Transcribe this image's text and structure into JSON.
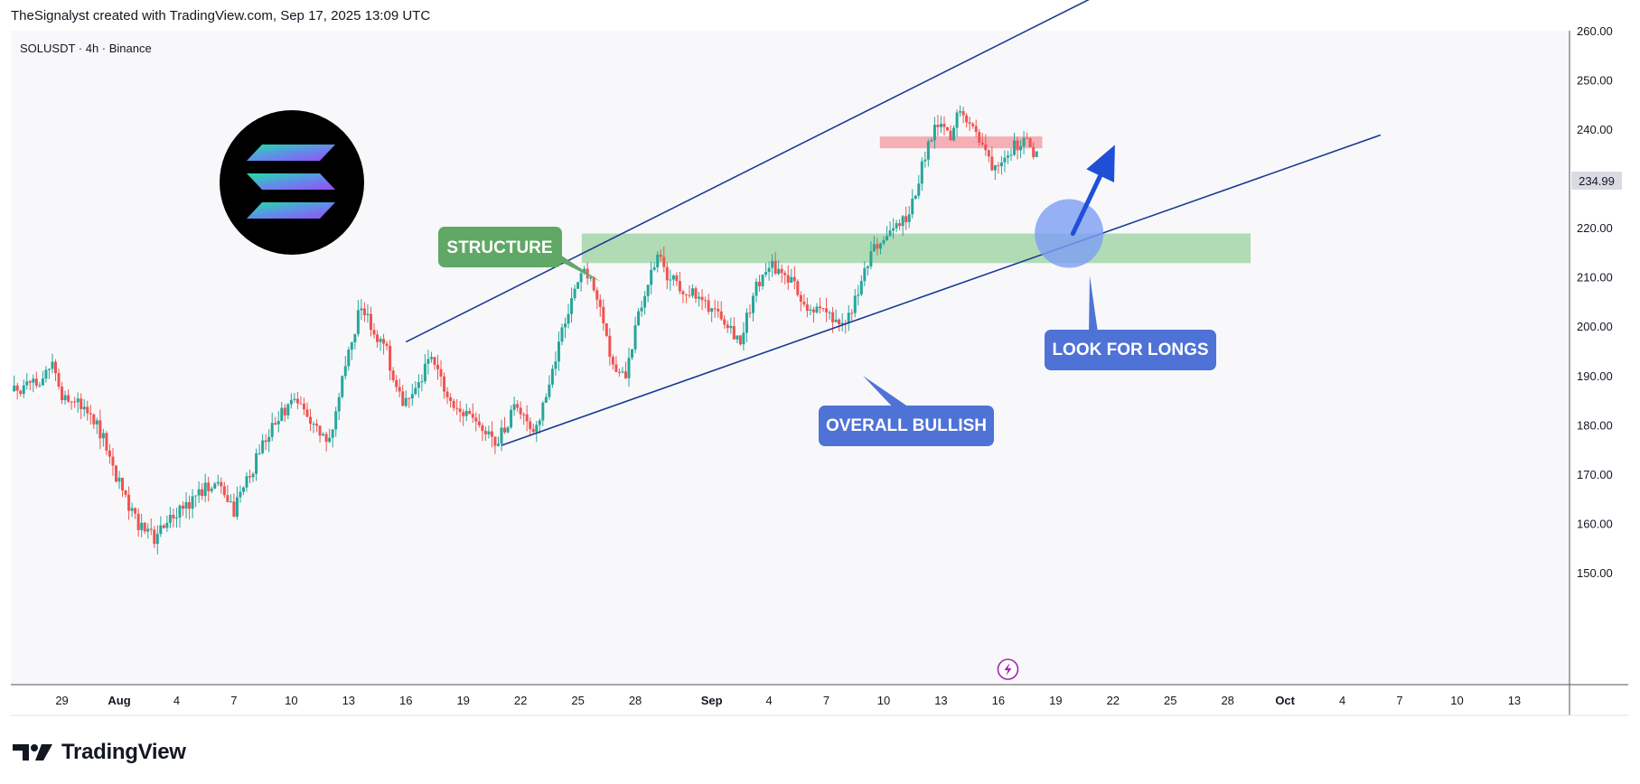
{
  "header": {
    "credit": "TheSignalyst created with TradingView.com, Sep 17, 2025 13:09 UTC"
  },
  "brand": {
    "name": "TradingView",
    "logo_icon": "tradingview-logo-icon"
  },
  "colors": {
    "up": "#26a69a",
    "down": "#ef5350",
    "trendline": "#1a3a94",
    "structure_zone": "#a5d6a7",
    "resistance_zone": "#f4a6ad",
    "structure_label": "#5fa865",
    "bullish_label": "#4f72d6",
    "arrow": "#1f4fd6",
    "circle": "#7d9ef5"
  },
  "chart_data": {
    "type": "candlestick",
    "title": "SOLUSDT · 4h · Binance",
    "symbol": "SOLUSDT",
    "interval": "4h",
    "exchange": "Binance",
    "ylim": [
      148,
      262
    ],
    "y_ticks": [
      "150.00",
      "160.00",
      "170.00",
      "180.00",
      "190.00",
      "200.00",
      "210.00",
      "220.00",
      "230.00",
      "240.00",
      "250.00",
      "260.00"
    ],
    "last_price": "234.99",
    "x_ticks": [
      {
        "label": "29",
        "day": -3
      },
      {
        "label": "Aug",
        "day": 0,
        "bold": true
      },
      {
        "label": "4",
        "day": 3
      },
      {
        "label": "7",
        "day": 6
      },
      {
        "label": "10",
        "day": 9
      },
      {
        "label": "13",
        "day": 12
      },
      {
        "label": "16",
        "day": 15
      },
      {
        "label": "19",
        "day": 18
      },
      {
        "label": "22",
        "day": 21
      },
      {
        "label": "25",
        "day": 24
      },
      {
        "label": "28",
        "day": 27
      },
      {
        "label": "Sep",
        "day": 31,
        "bold": true
      },
      {
        "label": "4",
        "day": 34
      },
      {
        "label": "7",
        "day": 37
      },
      {
        "label": "10",
        "day": 40
      },
      {
        "label": "13",
        "day": 43
      },
      {
        "label": "16",
        "day": 46
      },
      {
        "label": "19",
        "day": 49
      },
      {
        "label": "22",
        "day": 52
      },
      {
        "label": "25",
        "day": 55
      },
      {
        "label": "28",
        "day": 58
      },
      {
        "label": "Oct",
        "day": 61,
        "bold": true
      },
      {
        "label": "4",
        "day": 64
      },
      {
        "label": "7",
        "day": 67
      },
      {
        "label": "10",
        "day": 70
      },
      {
        "label": "13",
        "day": 73
      }
    ],
    "price_path": [
      [
        -5.5,
        187
      ],
      [
        -4.2,
        189
      ],
      [
        -3.6,
        193
      ],
      [
        -3,
        186
      ],
      [
        -1.5,
        183
      ],
      [
        -0.7,
        176
      ],
      [
        0,
        168
      ],
      [
        1,
        160
      ],
      [
        1.8,
        157
      ],
      [
        3,
        162
      ],
      [
        4.3,
        167
      ],
      [
        5,
        168
      ],
      [
        6,
        163
      ],
      [
        6.8,
        170
      ],
      [
        8,
        180
      ],
      [
        9,
        185
      ],
      [
        10,
        181
      ],
      [
        10.7,
        177
      ],
      [
        11.2,
        180
      ],
      [
        12,
        195
      ],
      [
        12.7,
        205
      ],
      [
        13.3,
        199
      ],
      [
        14,
        195
      ],
      [
        14.7,
        185
      ],
      [
        15.5,
        188
      ],
      [
        16.3,
        193
      ],
      [
        17.6,
        184
      ],
      [
        18.5,
        181
      ],
      [
        19.7,
        176
      ],
      [
        20.7,
        184
      ],
      [
        21.7,
        179
      ],
      [
        22.5,
        188
      ],
      [
        23.5,
        204
      ],
      [
        24.4,
        212
      ],
      [
        25.2,
        205
      ],
      [
        25.8,
        192
      ],
      [
        26.5,
        191
      ],
      [
        27.3,
        204
      ],
      [
        28.2,
        215
      ],
      [
        28.6,
        210
      ],
      [
        29.5,
        208
      ],
      [
        30.5,
        205
      ],
      [
        31.5,
        203
      ],
      [
        32.5,
        197
      ],
      [
        33.2,
        207
      ],
      [
        34,
        213
      ],
      [
        35.2,
        209
      ],
      [
        36,
        204
      ],
      [
        37,
        203
      ],
      [
        37.7,
        199
      ],
      [
        38.5,
        205
      ],
      [
        39.5,
        216
      ],
      [
        40.6,
        220
      ],
      [
        41.4,
        223
      ],
      [
        42,
        233
      ],
      [
        42.8,
        241
      ],
      [
        43.5,
        238
      ],
      [
        44,
        245
      ],
      [
        44.5,
        242
      ],
      [
        45,
        238
      ],
      [
        45.7,
        233
      ],
      [
        46.5,
        236
      ],
      [
        47.3,
        238
      ],
      [
        48,
        235
      ]
    ],
    "annotations": {
      "channel_upper": {
        "start": [
          15,
          197
        ],
        "end": [
          51,
          267
        ]
      },
      "channel_lower": {
        "start": [
          20,
          176
        ],
        "end": [
          66,
          239
        ]
      },
      "structure_zone": {
        "from_day": 24.2,
        "to_day": 59.2,
        "low": 213,
        "high": 219
      },
      "resistance_zone": {
        "from_day": 39.8,
        "to_day": 48.3,
        "low": 236.3,
        "high": 238.7
      },
      "structure_label": "STRUCTURE",
      "bullish_label": "OVERALL BULLISH",
      "longs_label": "LOOK FOR LONGS",
      "arrow": {
        "from": [
          49.9,
          219
        ],
        "to": [
          52.1,
          237
        ]
      },
      "circle_center": [
        49.7,
        219
      ]
    },
    "logo_icon": "solana-logo-icon",
    "event_icon": "lightning-icon",
    "event_day": 46.5
  }
}
